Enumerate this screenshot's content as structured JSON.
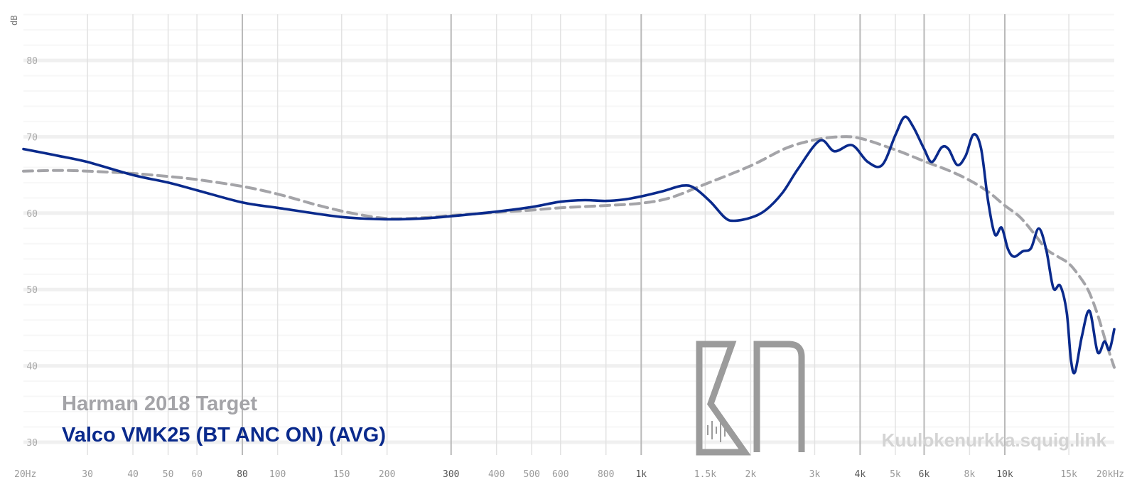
{
  "chart_data": {
    "type": "line",
    "ylabel": "dB",
    "xscale": "log",
    "xlim": [
      20,
      20000
    ],
    "ylim": [
      30,
      88
    ],
    "grid": true,
    "x_ticks": [
      {
        "value": 20,
        "label": "20Hz",
        "major": false
      },
      {
        "value": 30,
        "label": "30",
        "major": false
      },
      {
        "value": 40,
        "label": "40",
        "major": false
      },
      {
        "value": 50,
        "label": "50",
        "major": false
      },
      {
        "value": 60,
        "label": "60",
        "major": false
      },
      {
        "value": 80,
        "label": "80",
        "major": true
      },
      {
        "value": 100,
        "label": "100",
        "major": false
      },
      {
        "value": 150,
        "label": "150",
        "major": false
      },
      {
        "value": 200,
        "label": "200",
        "major": false
      },
      {
        "value": 300,
        "label": "300",
        "major": true
      },
      {
        "value": 400,
        "label": "400",
        "major": false
      },
      {
        "value": 500,
        "label": "500",
        "major": false
      },
      {
        "value": 600,
        "label": "600",
        "major": false
      },
      {
        "value": 800,
        "label": "800",
        "major": false
      },
      {
        "value": 1000,
        "label": "1k",
        "major": true
      },
      {
        "value": 1500,
        "label": "1.5k",
        "major": false
      },
      {
        "value": 2000,
        "label": "2k",
        "major": false
      },
      {
        "value": 3000,
        "label": "3k",
        "major": false
      },
      {
        "value": 4000,
        "label": "4k",
        "major": true
      },
      {
        "value": 5000,
        "label": "5k",
        "major": false
      },
      {
        "value": 6000,
        "label": "6k",
        "major": true
      },
      {
        "value": 8000,
        "label": "8k",
        "major": false
      },
      {
        "value": 10000,
        "label": "10k",
        "major": true
      },
      {
        "value": 15000,
        "label": "15k",
        "major": false
      },
      {
        "value": 20000,
        "label": "20kHz",
        "major": false
      }
    ],
    "y_ticks": [
      {
        "value": 30,
        "label": "30"
      },
      {
        "value": 40,
        "label": "40"
      },
      {
        "value": 50,
        "label": "50"
      },
      {
        "value": 60,
        "label": "60"
      },
      {
        "value": 70,
        "label": "70"
      },
      {
        "value": 80,
        "label": "80"
      }
    ],
    "series": [
      {
        "name": "Harman 2018 Target",
        "color": "#a4a4a8",
        "style": "dashed",
        "points": [
          [
            20,
            65.5
          ],
          [
            25,
            65.6
          ],
          [
            30,
            65.5
          ],
          [
            40,
            65.2
          ],
          [
            50,
            64.8
          ],
          [
            60,
            64.4
          ],
          [
            80,
            63.5
          ],
          [
            100,
            62.5
          ],
          [
            130,
            61.0
          ],
          [
            160,
            60.0
          ],
          [
            200,
            59.3
          ],
          [
            250,
            59.4
          ],
          [
            300,
            59.7
          ],
          [
            400,
            60.1
          ],
          [
            500,
            60.4
          ],
          [
            600,
            60.7
          ],
          [
            800,
            61.0
          ],
          [
            1000,
            61.3
          ],
          [
            1200,
            62.0
          ],
          [
            1500,
            63.8
          ],
          [
            2000,
            66.2
          ],
          [
            2500,
            68.5
          ],
          [
            3000,
            69.6
          ],
          [
            3500,
            70.0
          ],
          [
            4000,
            69.8
          ],
          [
            5000,
            68.3
          ],
          [
            6000,
            66.8
          ],
          [
            7000,
            65.6
          ],
          [
            8000,
            64.3
          ],
          [
            9000,
            62.8
          ],
          [
            10000,
            61.0
          ],
          [
            11000,
            59.5
          ],
          [
            12000,
            57.4
          ],
          [
            13000,
            55.3
          ],
          [
            14000,
            54.3
          ],
          [
            15000,
            53.4
          ],
          [
            16000,
            51.8
          ],
          [
            17000,
            49.8
          ],
          [
            18000,
            46.7
          ],
          [
            19000,
            43.0
          ],
          [
            20000,
            39.8
          ]
        ]
      },
      {
        "name": "Valco VMK25 (BT ANC ON) (AVG)",
        "color": "#0a2a8c",
        "style": "solid",
        "points": [
          [
            20,
            68.4
          ],
          [
            25,
            67.5
          ],
          [
            30,
            66.7
          ],
          [
            40,
            65.0
          ],
          [
            50,
            64.0
          ],
          [
            60,
            63.0
          ],
          [
            80,
            61.4
          ],
          [
            100,
            60.7
          ],
          [
            150,
            59.5
          ],
          [
            200,
            59.2
          ],
          [
            250,
            59.3
          ],
          [
            300,
            59.6
          ],
          [
            400,
            60.2
          ],
          [
            500,
            60.8
          ],
          [
            600,
            61.5
          ],
          [
            700,
            61.7
          ],
          [
            800,
            61.6
          ],
          [
            900,
            61.8
          ],
          [
            1000,
            62.2
          ],
          [
            1150,
            62.9
          ],
          [
            1300,
            63.6
          ],
          [
            1400,
            63.3
          ],
          [
            1550,
            61.5
          ],
          [
            1700,
            59.4
          ],
          [
            1800,
            59.0
          ],
          [
            2000,
            59.4
          ],
          [
            2200,
            60.4
          ],
          [
            2450,
            62.7
          ],
          [
            2700,
            65.8
          ],
          [
            3100,
            69.5
          ],
          [
            3400,
            68.1
          ],
          [
            3800,
            68.9
          ],
          [
            4200,
            66.7
          ],
          [
            4600,
            66.3
          ],
          [
            5000,
            70.2
          ],
          [
            5300,
            72.6
          ],
          [
            5600,
            71.3
          ],
          [
            6000,
            68.4
          ],
          [
            6300,
            66.7
          ],
          [
            6700,
            68.6
          ],
          [
            7000,
            68.4
          ],
          [
            7400,
            66.3
          ],
          [
            7800,
            67.5
          ],
          [
            8200,
            70.3
          ],
          [
            8600,
            68.5
          ],
          [
            9000,
            61.5
          ],
          [
            9400,
            57.2
          ],
          [
            9800,
            58.1
          ],
          [
            10200,
            55.3
          ],
          [
            10600,
            54.3
          ],
          [
            11200,
            55.0
          ],
          [
            11800,
            55.4
          ],
          [
            12400,
            58.0
          ],
          [
            13000,
            55.2
          ],
          [
            13600,
            50.2
          ],
          [
            14200,
            50.5
          ],
          [
            14800,
            47.0
          ],
          [
            15200,
            40.8
          ],
          [
            15600,
            39.2
          ],
          [
            16300,
            43.9
          ],
          [
            17100,
            47.2
          ],
          [
            18000,
            41.8
          ],
          [
            18800,
            43.2
          ],
          [
            19400,
            42.1
          ],
          [
            20000,
            44.8
          ]
        ]
      }
    ]
  },
  "legend": {
    "target_label": "Harman 2018 Target",
    "device_label": "Valco VMK25 (BT ANC ON) (AVG)"
  },
  "watermark": {
    "site": "Kuulokenurkka.squig.link",
    "logo_text": "KN"
  }
}
